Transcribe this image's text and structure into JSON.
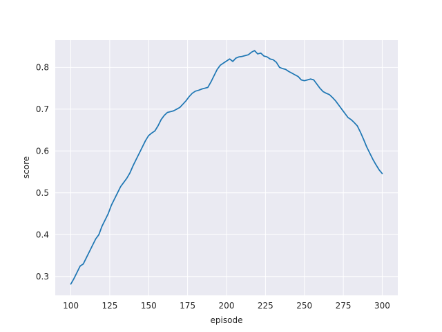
{
  "chart_data": {
    "type": "line",
    "title": "",
    "xlabel": "episode",
    "ylabel": "score",
    "xlim": [
      90,
      310
    ],
    "ylim": [
      0.255,
      0.865
    ],
    "x_ticks": [
      100,
      125,
      150,
      175,
      200,
      225,
      250,
      275,
      300
    ],
    "y_ticks": [
      0.3,
      0.4,
      0.5,
      0.6,
      0.7,
      0.8
    ],
    "grid": true,
    "legend": "none",
    "colors": {
      "background": "#eaeaf2",
      "grid": "#ffffff",
      "line": "#1f77b4"
    },
    "series": [
      {
        "points": [
          [
            100,
            0.282
          ],
          [
            102,
            0.295
          ],
          [
            104,
            0.31
          ],
          [
            106,
            0.325
          ],
          [
            108,
            0.33
          ],
          [
            110,
            0.345
          ],
          [
            112,
            0.36
          ],
          [
            114,
            0.375
          ],
          [
            116,
            0.39
          ],
          [
            118,
            0.4
          ],
          [
            120,
            0.42
          ],
          [
            122,
            0.435
          ],
          [
            124,
            0.45
          ],
          [
            126,
            0.47
          ],
          [
            128,
            0.485
          ],
          [
            130,
            0.5
          ],
          [
            132,
            0.515
          ],
          [
            134,
            0.525
          ],
          [
            136,
            0.535
          ],
          [
            138,
            0.548
          ],
          [
            140,
            0.565
          ],
          [
            142,
            0.58
          ],
          [
            144,
            0.595
          ],
          [
            146,
            0.61
          ],
          [
            148,
            0.625
          ],
          [
            150,
            0.637
          ],
          [
            152,
            0.643
          ],
          [
            154,
            0.648
          ],
          [
            156,
            0.66
          ],
          [
            158,
            0.675
          ],
          [
            160,
            0.685
          ],
          [
            162,
            0.692
          ],
          [
            164,
            0.694
          ],
          [
            166,
            0.696
          ],
          [
            168,
            0.7
          ],
          [
            170,
            0.704
          ],
          [
            172,
            0.712
          ],
          [
            174,
            0.72
          ],
          [
            176,
            0.73
          ],
          [
            178,
            0.738
          ],
          [
            180,
            0.743
          ],
          [
            182,
            0.745
          ],
          [
            184,
            0.748
          ],
          [
            186,
            0.75
          ],
          [
            188,
            0.752
          ],
          [
            190,
            0.765
          ],
          [
            192,
            0.78
          ],
          [
            194,
            0.795
          ],
          [
            196,
            0.805
          ],
          [
            198,
            0.81
          ],
          [
            200,
            0.815
          ],
          [
            202,
            0.82
          ],
          [
            204,
            0.814
          ],
          [
            206,
            0.822
          ],
          [
            208,
            0.825
          ],
          [
            210,
            0.826
          ],
          [
            212,
            0.828
          ],
          [
            214,
            0.83
          ],
          [
            216,
            0.836
          ],
          [
            218,
            0.84
          ],
          [
            220,
            0.832
          ],
          [
            222,
            0.834
          ],
          [
            224,
            0.827
          ],
          [
            226,
            0.825
          ],
          [
            228,
            0.82
          ],
          [
            230,
            0.818
          ],
          [
            232,
            0.812
          ],
          [
            234,
            0.8
          ],
          [
            236,
            0.797
          ],
          [
            238,
            0.795
          ],
          [
            240,
            0.79
          ],
          [
            242,
            0.786
          ],
          [
            244,
            0.782
          ],
          [
            246,
            0.778
          ],
          [
            248,
            0.77
          ],
          [
            250,
            0.768
          ],
          [
            252,
            0.77
          ],
          [
            254,
            0.772
          ],
          [
            256,
            0.77
          ],
          [
            258,
            0.76
          ],
          [
            260,
            0.75
          ],
          [
            262,
            0.742
          ],
          [
            264,
            0.738
          ],
          [
            266,
            0.735
          ],
          [
            268,
            0.728
          ],
          [
            270,
            0.72
          ],
          [
            272,
            0.71
          ],
          [
            274,
            0.7
          ],
          [
            276,
            0.69
          ],
          [
            278,
            0.68
          ],
          [
            280,
            0.675
          ],
          [
            282,
            0.668
          ],
          [
            284,
            0.66
          ],
          [
            286,
            0.645
          ],
          [
            288,
            0.628
          ],
          [
            290,
            0.61
          ],
          [
            292,
            0.595
          ],
          [
            294,
            0.58
          ],
          [
            296,
            0.567
          ],
          [
            298,
            0.555
          ],
          [
            300,
            0.546
          ]
        ]
      }
    ]
  }
}
